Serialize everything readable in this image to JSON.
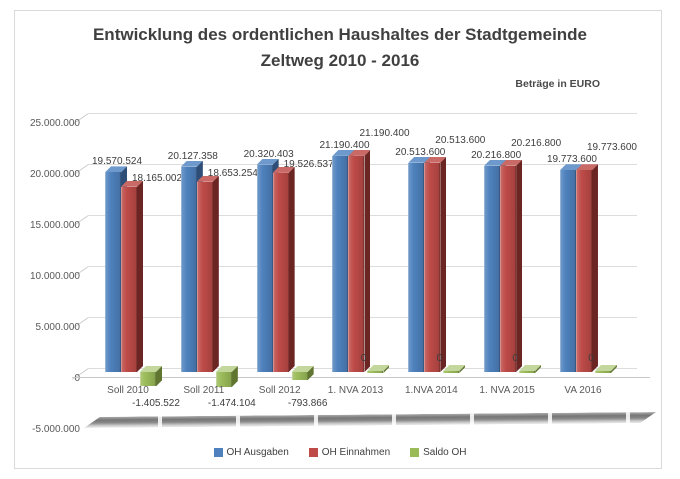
{
  "title": {
    "line1": "Entwicklung des ordentlichen Haushaltes der Stadtgemeinde",
    "line2": "Zeltweg 2010 - 2016"
  },
  "subtitle": "Beträge in EURO",
  "chart_data": {
    "type": "bar",
    "style": "3d-clustered-column",
    "title": "Entwicklung des ordentlichen Haushaltes der Stadtgemeinde Zeltweg 2010 - 2016",
    "units_note": "Beträge in EURO",
    "categories": [
      "Soll 2010",
      "Soll 2011",
      "Soll 2012",
      "1. NVA 2013",
      "1.NVA 2014",
      "1. NVA 2015",
      "VA 2016"
    ],
    "series": [
      {
        "name": "OH Ausgaben",
        "colors": {
          "front": "#4E81BD",
          "top": "#6E99CC",
          "side": "#2F4E77"
        },
        "values": [
          19570524,
          20127358,
          20320403,
          21190400,
          20513600,
          20216800,
          19773600
        ],
        "labels": [
          "19.570.524",
          "20.127.358",
          "20.320.403",
          "21.190.400",
          "20.513.600",
          "20.216.800",
          "19.773.600"
        ]
      },
      {
        "name": "OH Einnahmen",
        "colors": {
          "front": "#BE4B48",
          "top": "#C96A67",
          "side": "#6B2523"
        },
        "values": [
          18165002,
          18653254,
          19526537,
          21190400,
          20513600,
          20216800,
          19773600
        ],
        "labels": [
          "18.165.002",
          "18.653.254",
          "19.526.537",
          "21.190.400",
          "20.513.600",
          "20.216.800",
          "19.773.600"
        ]
      },
      {
        "name": "Saldo OH",
        "colors": {
          "front": "#9BBB59",
          "top": "#C3D69B",
          "side": "#5F7530"
        },
        "values": [
          -1405522,
          -1474104,
          -793866,
          0,
          0,
          0,
          0
        ],
        "labels": [
          "-1.405.522",
          "-1.474.104",
          "-793.866",
          "0",
          "0",
          "0",
          "0"
        ]
      }
    ],
    "ylim": [
      -5000000,
      25000000
    ],
    "yticks": [
      25000000,
      20000000,
      15000000,
      10000000,
      5000000,
      0,
      -5000000
    ],
    "ytick_labels": [
      "25.000.000",
      "20.000.000",
      "15.000.000",
      "10.000.000",
      "5.000.000",
      "0",
      "-5.000.000"
    ],
    "grid": true,
    "legend_position": "bottom"
  }
}
